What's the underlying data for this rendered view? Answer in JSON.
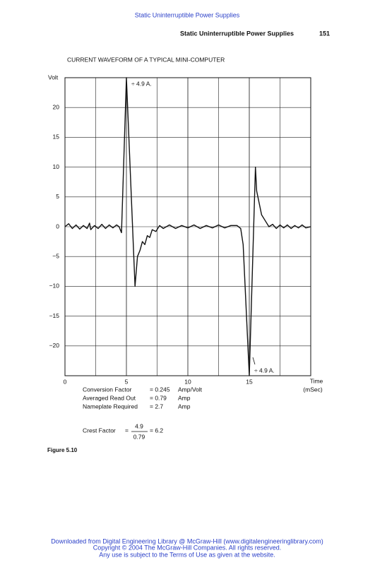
{
  "header": {
    "link": "Static Uninterruptible Power Supplies",
    "running_title": "Static Uninterruptible Power Supplies",
    "page_number": "151"
  },
  "chart_data": {
    "type": "line",
    "title": "CURRENT WAVEFORM OF A TYPICAL MINI-COMPUTER",
    "ylabel": "Volt",
    "xlabel": "Time",
    "xlabel_unit": "(mSec)",
    "color": "#111111",
    "grid": true,
    "xlim": [
      0,
      20
    ],
    "xticks": [
      0,
      5,
      10,
      15
    ],
    "ylim": [
      -25,
      25
    ],
    "yticks": [
      {
        "value": -20,
        "label": "−20"
      },
      {
        "value": -15,
        "label": "−15"
      },
      {
        "value": -10,
        "label": "−10"
      },
      {
        "value": -5,
        "label": "−5"
      },
      0,
      5,
      10,
      15,
      20
    ],
    "x": [
      0,
      0.3,
      0.6,
      0.9,
      1.2,
      1.5,
      1.8,
      2.0,
      2.1,
      2.4,
      2.7,
      3.0,
      3.3,
      3.6,
      3.9,
      4.2,
      4.4,
      4.6,
      5.0,
      5.4,
      5.7,
      5.9,
      6.1,
      6.3,
      6.5,
      6.7,
      6.9,
      7.1,
      7.4,
      7.7,
      8.0,
      8.5,
      9.0,
      9.5,
      10.0,
      10.5,
      11.0,
      11.5,
      12.0,
      12.5,
      13.0,
      13.5,
      14.0,
      14.3,
      14.5,
      15.0,
      15.5,
      15.6,
      15.8,
      16.0,
      16.3,
      16.6,
      16.9,
      17.2,
      17.5,
      17.8,
      18.1,
      18.4,
      18.7,
      19.0,
      19.3,
      19.6,
      20.0
    ],
    "values": [
      0,
      0.5,
      -0.3,
      0.3,
      -0.4,
      0.2,
      -0.3,
      0.6,
      -0.5,
      0.2,
      -0.3,
      0.4,
      -0.3,
      0.3,
      -0.2,
      0.3,
      0,
      -1,
      25,
      5,
      -10,
      -5,
      -4,
      -2.5,
      -3,
      -1.5,
      -1.8,
      -0.5,
      -0.8,
      0.2,
      -0.3,
      0.3,
      -0.3,
      0.2,
      -0.2,
      0.3,
      -0.3,
      0.2,
      -0.2,
      0.3,
      -0.2,
      0.2,
      0.2,
      -0.3,
      -3,
      -25,
      10,
      6,
      4,
      2,
      1,
      0,
      0.4,
      -0.3,
      0.3,
      -0.2,
      0.3,
      -0.3,
      0.2,
      -0.2,
      0.3,
      -0.2,
      0
    ],
    "annotations": [
      "÷ 4.9 A.",
      "÷ 4.9 A."
    ]
  },
  "notes": {
    "factors": [
      [
        "Conversion Factor",
        "= 0.245",
        "Amp/Volt"
      ],
      [
        "Averaged Read Out",
        "= 0.79",
        "Amp"
      ],
      [
        "Nameplate Required",
        "= 2.7",
        "Amp"
      ]
    ],
    "crest": {
      "label": "Crest Factor",
      "equals": "=",
      "numerator": "4.9",
      "denominator": "0.79",
      "result": "= 6.2"
    }
  },
  "caption": "Figure 5.10",
  "footer": [
    "Downloaded from Digital Engineering Library @ McGraw-Hill (www.digitalengineeringlibrary.com)",
    "Copyright © 2004 The McGraw-Hill Companies. All rights reserved.",
    "Any use is subject to the Terms of Use as given at the website."
  ]
}
